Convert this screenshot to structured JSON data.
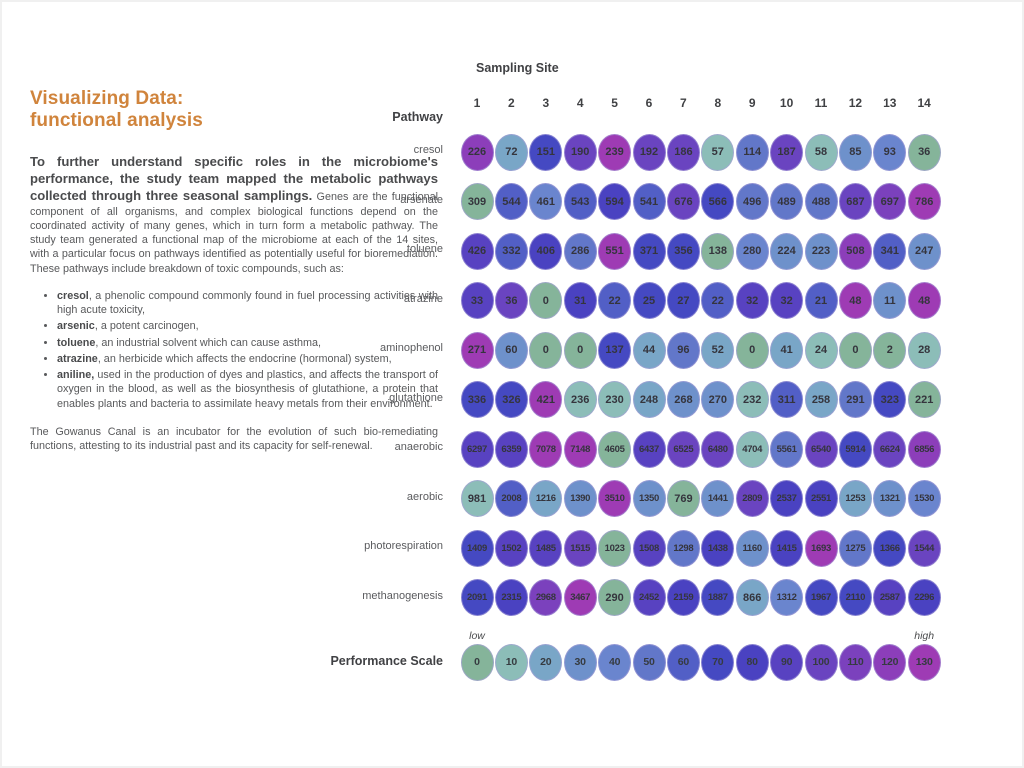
{
  "article": {
    "title": "Visualizing Data:\nfunctional analysis",
    "title_color": "#d0843c",
    "lead_bold": "To further understand specific roles in the microbiome's performance, the study team mapped the metabolic pathways collected through three seasonal samplings.",
    "lead_rest": " Genes are the functional component of all organisms, and complex biological functions depend on the coordinated activity of many genes, which in turn form a metabolic pathway. The study team generated a functional map of the microbiome at each of the 14 sites, with a particular focus on pathways identified as potentially useful for bioremediation. These pathways include breakdown of toxic compounds, such as:",
    "bullets": [
      {
        "term": "cresol",
        "rest": ", a phenolic compound commonly found in fuel processing activities with high acute toxicity,"
      },
      {
        "term": "arsenic",
        "rest": ", a potent carcinogen,"
      },
      {
        "term": "toluene",
        "rest": ", an industrial solvent which can cause asthma,"
      },
      {
        "term": "atrazine",
        "rest": ", an herbicide which affects the endocrine (hormonal) system,"
      },
      {
        "term": "aniline,",
        "rest": " used in the production of dyes and plastics, and affects the transport of oxygen in the blood, as well as the biosynthesis of glutathione, a protein that enables plants and bacteria to assimilate heavy metals from their environment."
      }
    ],
    "closing": "The Gowanus Canal is an incubator for the evolution of such bio-remediating functions, attesting to its industrial past and its capacity for self-renewal."
  },
  "chart_data": {
    "type": "heatmap",
    "column_axis_label": "Sampling Site",
    "row_axis_label": "Pathway",
    "columns": [
      "1",
      "2",
      "3",
      "4",
      "5",
      "6",
      "7",
      "8",
      "9",
      "10",
      "11",
      "12",
      "13",
      "14"
    ],
    "rows": [
      {
        "label": "cresol",
        "values": [
          226,
          72,
          151,
          190,
          239,
          192,
          186,
          57,
          114,
          187,
          58,
          85,
          93,
          36
        ]
      },
      {
        "label": "arsenate",
        "values": [
          309,
          544,
          461,
          543,
          594,
          541,
          676,
          566,
          496,
          489,
          488,
          687,
          697,
          786
        ]
      },
      {
        "label": "toluene",
        "values": [
          426,
          332,
          406,
          286,
          551,
          371,
          356,
          138,
          280,
          224,
          223,
          508,
          341,
          247
        ]
      },
      {
        "label": "atrazine",
        "values": [
          33,
          36,
          0,
          31,
          22,
          25,
          27,
          22,
          32,
          32,
          21,
          48,
          11,
          48
        ]
      },
      {
        "label": "aminophenol",
        "values": [
          271,
          60,
          0,
          0,
          137,
          44,
          96,
          52,
          0,
          41,
          24,
          0,
          2,
          28
        ]
      },
      {
        "label": "glutathione",
        "values": [
          336,
          326,
          421,
          236,
          230,
          248,
          268,
          270,
          232,
          311,
          258,
          291,
          323,
          221
        ]
      },
      {
        "label": "anaerobic",
        "values": [
          6297,
          6359,
          7078,
          7148,
          4605,
          6437,
          6525,
          6480,
          4704,
          5561,
          6540,
          5914,
          6624,
          6856
        ]
      },
      {
        "label": "aerobic",
        "values": [
          981,
          2008,
          1216,
          1390,
          3510,
          1350,
          769,
          1441,
          2809,
          2537,
          2551,
          1253,
          1321,
          1530
        ]
      },
      {
        "label": "photorespiration",
        "values": [
          1409,
          1502,
          1485,
          1515,
          1023,
          1508,
          1298,
          1438,
          1160,
          1415,
          1693,
          1275,
          1366,
          1544
        ]
      },
      {
        "label": "methanogenesis",
        "values": [
          2091,
          2315,
          2968,
          3467,
          290,
          2452,
          2159,
          1887,
          866,
          1312,
          1967,
          2110,
          2587,
          2296
        ]
      }
    ],
    "color_mapping": "per-row min-max normalized to 14-step performance scale",
    "scale": {
      "label": "Performance Scale",
      "low_label": "low",
      "high_label": "high",
      "ticks": [
        0,
        10,
        20,
        30,
        40,
        50,
        60,
        70,
        80,
        90,
        100,
        110,
        120,
        130
      ],
      "colors": [
        "#85b49a",
        "#8cbdb8",
        "#79a6c7",
        "#6e91cb",
        "#6a85ce",
        "#6277c9",
        "#525fc6",
        "#4549c2",
        "#4a42c1",
        "#5842c1",
        "#6a44c0",
        "#7b41bd",
        "#8c3eba",
        "#9e3bb4"
      ]
    }
  }
}
